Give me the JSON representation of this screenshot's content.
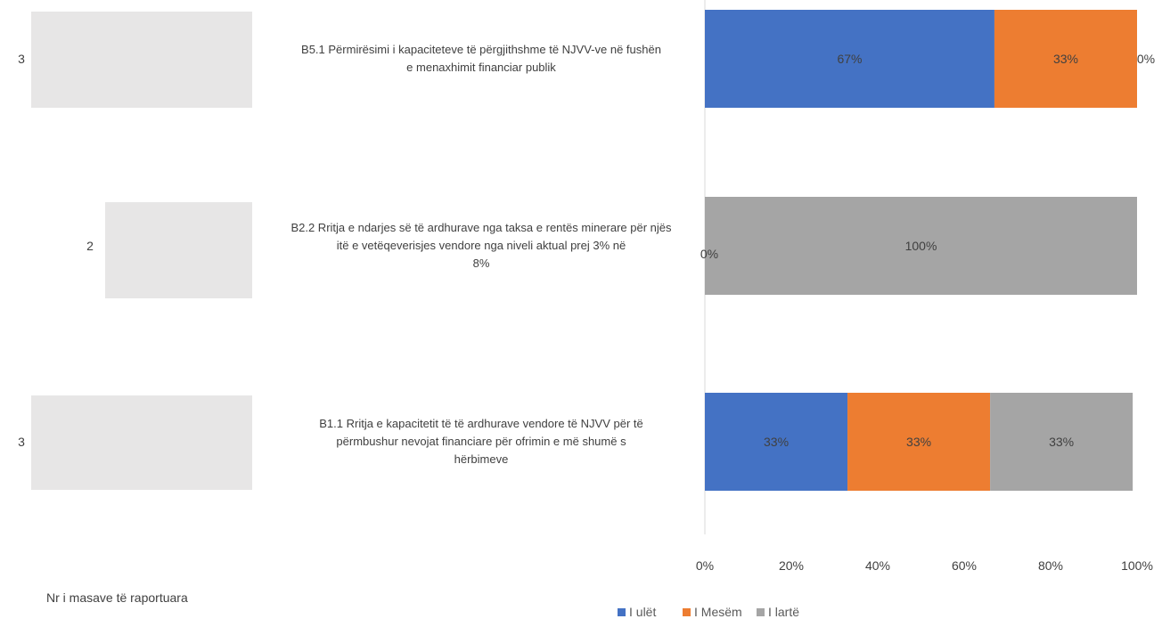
{
  "chart_data": {
    "type": "bar",
    "orientation": "horizontal",
    "stacked": "percent",
    "categories": [
      "B5.1 Përmirësimi i kapaciteteve të përgjithshme të NJVV-ve në fushën e menaxhimit financiar publik",
      "B2.2 Rritja e ndarjes së të ardhurave nga taksa e rentës minerare për njësitë e vetëqeverisjes vendore nga niveli aktual prej 3% në 8%",
      "B1.1 Rritja e kapacitetit të të ardhurave vendore të NJVV për të përmbushur nevojat financiare për ofrimin e më shumë shërbimeve"
    ],
    "measure_counts": [
      "3",
      "2",
      "3"
    ],
    "series": [
      {
        "name": "I ulët",
        "color": "#4472C4",
        "values": [
          67,
          0,
          33
        ],
        "labels": [
          "67%",
          "",
          "33%"
        ]
      },
      {
        "name": "I Mesëm",
        "color": "#ED7D31",
        "values": [
          33,
          0,
          33
        ],
        "labels": [
          "33%",
          "",
          "33%"
        ]
      },
      {
        "name": "I lartë",
        "color": "#A5A5A5",
        "values": [
          0,
          100,
          33
        ],
        "labels": [
          "0%",
          "100%",
          "33%"
        ]
      }
    ],
    "extra_labels": [
      "0%"
    ],
    "x_ticks": [
      "0%",
      "20%",
      "40%",
      "60%",
      "80%",
      "100%"
    ],
    "xlim": [
      0,
      100
    ],
    "bottom_label": "Nr i masave të raportuara",
    "legend_position": "bottom"
  }
}
